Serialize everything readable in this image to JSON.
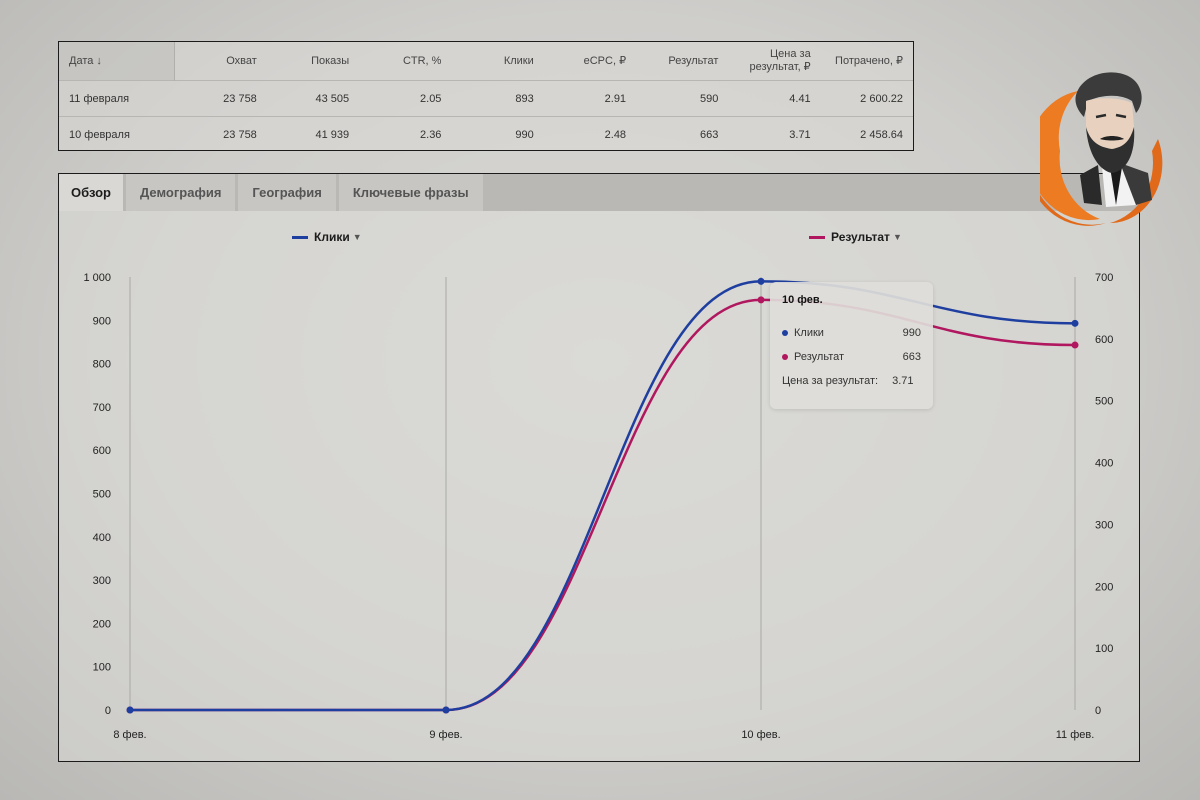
{
  "table": {
    "headers": [
      "Дата ↓",
      "Охват",
      "Показы",
      "CTR, %",
      "Клики",
      "eCPC, ₽",
      "Результат",
      "Цена за результат, ₽",
      "Потрачено, ₽"
    ],
    "rows": [
      [
        "11 февраля",
        "23 758",
        "43 505",
        "2.05",
        "893",
        "2.91",
        "590",
        "4.41",
        "2 600.22"
      ],
      [
        "10 февраля",
        "23 758",
        "41 939",
        "2.36",
        "990",
        "2.48",
        "663",
        "3.71",
        "2 458.64"
      ]
    ]
  },
  "tabs": [
    "Обзор",
    "Демография",
    "География",
    "Ключевые фразы"
  ],
  "legend": {
    "left": "Клики",
    "right": "Результат"
  },
  "tooltip": {
    "title": "10 фев.",
    "clicks_label": "Клики",
    "clicks_value": "990",
    "result_label": "Результат",
    "result_value": "663",
    "cpr_label": "Цена за результат:",
    "cpr_value": "3.71"
  },
  "colors": {
    "clicks": "#1f3fa0",
    "result": "#b0175f"
  },
  "chart_data": {
    "type": "line",
    "categories": [
      "8 фев.",
      "9 фев.",
      "10 фев.",
      "11 фев."
    ],
    "series": [
      {
        "name": "Клики",
        "axis": "left",
        "values": [
          0,
          0,
          990,
          893
        ]
      },
      {
        "name": "Результат",
        "axis": "right",
        "values": [
          0,
          0,
          663,
          590
        ]
      }
    ],
    "y_left": {
      "min": 0,
      "max": 1000,
      "ticks": [
        "0",
        "100",
        "200",
        "300",
        "400",
        "500",
        "600",
        "700",
        "800",
        "900",
        "1 000"
      ]
    },
    "y_right": {
      "min": 0,
      "max": 700,
      "ticks": [
        "0",
        "100",
        "200",
        "300",
        "400",
        "500",
        "600",
        "700"
      ]
    },
    "grid": "vertical"
  }
}
